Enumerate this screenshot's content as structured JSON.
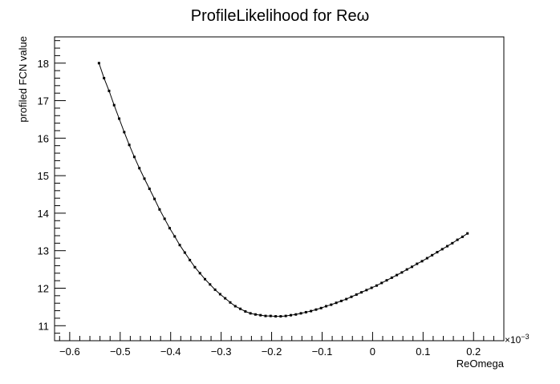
{
  "chart_data": {
    "type": "line",
    "title": "ProfileLikelihood for Reω",
    "xlabel": "ReOmega",
    "ylabel": "profiled FCN value",
    "x_exponent_label": "×10",
    "x_exponent_power": "−3",
    "xlim": [
      -0.63,
      0.26
    ],
    "ylim": [
      10.6,
      18.7
    ],
    "x_major_ticks": [
      -0.6,
      -0.5,
      -0.4,
      -0.3,
      -0.2,
      -0.1,
      0,
      0.1,
      0.2
    ],
    "x_tick_labels": [
      "−0.6",
      "−0.5",
      "−0.4",
      "−0.3",
      "−0.2",
      "−0.1",
      "0",
      "0.1",
      "0.2"
    ],
    "y_major_ticks": [
      11,
      12,
      13,
      14,
      15,
      16,
      17,
      18
    ],
    "y_tick_labels": [
      "11",
      "12",
      "13",
      "14",
      "15",
      "16",
      "17",
      "18"
    ],
    "grid": false,
    "legend": "none",
    "series": [
      {
        "marker": "square",
        "color": "#000000",
        "x": [
          -0.542,
          -0.532,
          -0.522,
          -0.512,
          -0.502,
          -0.492,
          -0.482,
          -0.472,
          -0.462,
          -0.452,
          -0.442,
          -0.432,
          -0.422,
          -0.412,
          -0.402,
          -0.392,
          -0.382,
          -0.372,
          -0.362,
          -0.352,
          -0.342,
          -0.332,
          -0.322,
          -0.312,
          -0.302,
          -0.292,
          -0.282,
          -0.272,
          -0.262,
          -0.252,
          -0.242,
          -0.232,
          -0.222,
          -0.212,
          -0.202,
          -0.192,
          -0.182,
          -0.172,
          -0.162,
          -0.152,
          -0.142,
          -0.132,
          -0.122,
          -0.112,
          -0.102,
          -0.092,
          -0.082,
          -0.072,
          -0.062,
          -0.052,
          -0.042,
          -0.032,
          -0.022,
          -0.012,
          -0.002,
          0.008,
          0.018,
          0.028,
          0.038,
          0.048,
          0.058,
          0.068,
          0.078,
          0.088,
          0.098,
          0.108,
          0.118,
          0.128,
          0.138,
          0.148,
          0.158,
          0.168,
          0.178,
          0.188
        ],
        "y": [
          18.0,
          17.6,
          17.26,
          16.88,
          16.52,
          16.16,
          15.82,
          15.5,
          15.2,
          14.92,
          14.65,
          14.38,
          14.1,
          13.85,
          13.6,
          13.38,
          13.15,
          12.95,
          12.75,
          12.56,
          12.4,
          12.24,
          12.1,
          11.96,
          11.84,
          11.73,
          11.62,
          11.52,
          11.45,
          11.38,
          11.33,
          11.3,
          11.28,
          11.26,
          11.26,
          11.25,
          11.25,
          11.26,
          11.28,
          11.3,
          11.33,
          11.36,
          11.39,
          11.43,
          11.47,
          11.52,
          11.56,
          11.61,
          11.66,
          11.71,
          11.77,
          11.83,
          11.89,
          11.95,
          12.01,
          12.07,
          12.14,
          12.21,
          12.28,
          12.35,
          12.42,
          12.5,
          12.57,
          12.65,
          12.72,
          12.8,
          12.88,
          12.96,
          13.04,
          13.12,
          13.2,
          13.29,
          13.37,
          13.46
        ]
      }
    ]
  }
}
